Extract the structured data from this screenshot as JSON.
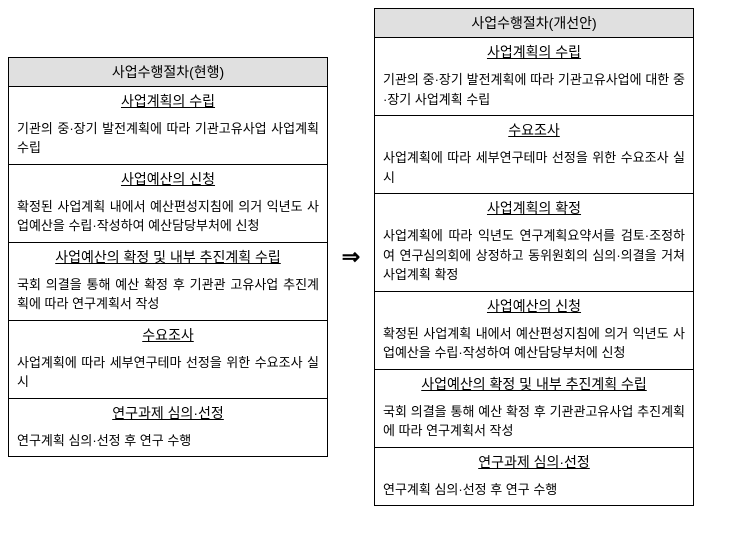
{
  "left": {
    "header": "사업수행절차(현행)",
    "steps": [
      {
        "title": "사업계획의 수립",
        "desc": "기관의 중·장기 발전계획에 따라 기관고유사업 사업계획 수립"
      },
      {
        "title": "사업예산의 신청",
        "desc": "확정된 사업계획 내에서 예산편성지침에 의거 익년도 사업예산을 수립·작성하여 예산담당부처에 신청"
      },
      {
        "title": "사업예산의 확정 및 내부 추진계획 수립",
        "desc": "국회 의결을 통해 예산 확정 후 기관관 고유사업 추진계획에 따라 연구계획서 작성"
      },
      {
        "title": "수요조사",
        "desc": "사업계획에 따라 세부연구테마 선정을 위한 수요조사 실시"
      },
      {
        "title": "연구과제 심의·선정",
        "desc": "연구계획 심의·선정 후 연구 수행"
      }
    ]
  },
  "arrow": "⇒",
  "right": {
    "header": "사업수행절차(개선안)",
    "steps": [
      {
        "title": "사업계획의 수립",
        "desc": "기관의 중·장기 발전계획에 따라 기관고유사업에 대한 중·장기 사업계획 수립"
      },
      {
        "title": "수요조사",
        "desc": "사업계획에 따라 세부연구테마 선정을 위한 수요조사 실시"
      },
      {
        "title": "사업계획의 확정",
        "desc": "사업계획에 따라 익년도 연구계획요약서를 검토·조정하여 연구심의회에 상정하고 동위원회의 심의·의결을 거쳐 사업계획 확정"
      },
      {
        "title": "사업예산의 신청",
        "desc": "확정된 사업계획 내에서 예산편성지침에 의거 익년도 사업예산을 수립·작성하여 예산담당부처에 신청"
      },
      {
        "title": "사업예산의 확정 및 내부 추진계획 수립",
        "desc": "국회 의결을 통해 예산 확정 후 기관관고유사업 추진계획에 따라 연구계획서 작성"
      },
      {
        "title": "연구과제 심의·선정",
        "desc": "연구계획 심의·선정 후 연구 수행"
      }
    ]
  }
}
